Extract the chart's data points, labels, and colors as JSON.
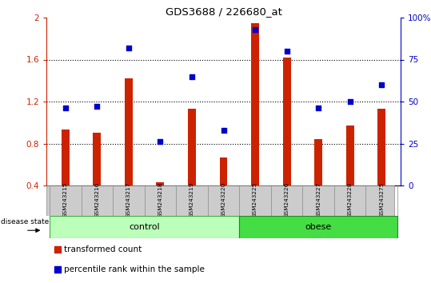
{
  "title": "GDS3688 / 226680_at",
  "samples": [
    "GSM243215",
    "GSM243216",
    "GSM243217",
    "GSM243218",
    "GSM243219",
    "GSM243220",
    "GSM243225",
    "GSM243226",
    "GSM243227",
    "GSM243228",
    "GSM243275"
  ],
  "transformed_count": [
    0.93,
    0.9,
    1.42,
    0.43,
    1.13,
    0.67,
    1.95,
    1.62,
    0.84,
    0.97,
    1.13
  ],
  "percentile_rank": [
    46,
    47,
    82,
    26,
    65,
    33,
    93,
    80,
    46,
    50,
    60
  ],
  "bar_color": "#cc2200",
  "dot_color": "#0000cc",
  "ylim_left": [
    0.4,
    2.0
  ],
  "ylim_right": [
    0,
    100
  ],
  "yticks_left": [
    0.4,
    0.8,
    1.2,
    1.6,
    2.0
  ],
  "ytick_labels_left": [
    "0.4",
    "0.8",
    "1.2",
    "1.6",
    "2"
  ],
  "ytick_labels_right": [
    "0",
    "25",
    "50",
    "75",
    "100%"
  ],
  "yticks_right": [
    0,
    25,
    50,
    75,
    100
  ],
  "groups": [
    {
      "label": "control",
      "indices": [
        0,
        1,
        2,
        3,
        4,
        5
      ],
      "color": "#bbffbb",
      "edge_color": "#44aa44"
    },
    {
      "label": "obese",
      "indices": [
        6,
        7,
        8,
        9,
        10
      ],
      "color": "#44dd44",
      "edge_color": "#228822"
    }
  ],
  "disease_state_label": "disease state",
  "legend_items": [
    {
      "label": "transformed count",
      "color": "#cc2200"
    },
    {
      "label": "percentile rank within the sample",
      "color": "#0000cc"
    }
  ],
  "bar_width": 0.25,
  "dotted_line_color": "#000000",
  "grid_dotted_ticks": [
    0.8,
    1.2,
    1.6
  ]
}
